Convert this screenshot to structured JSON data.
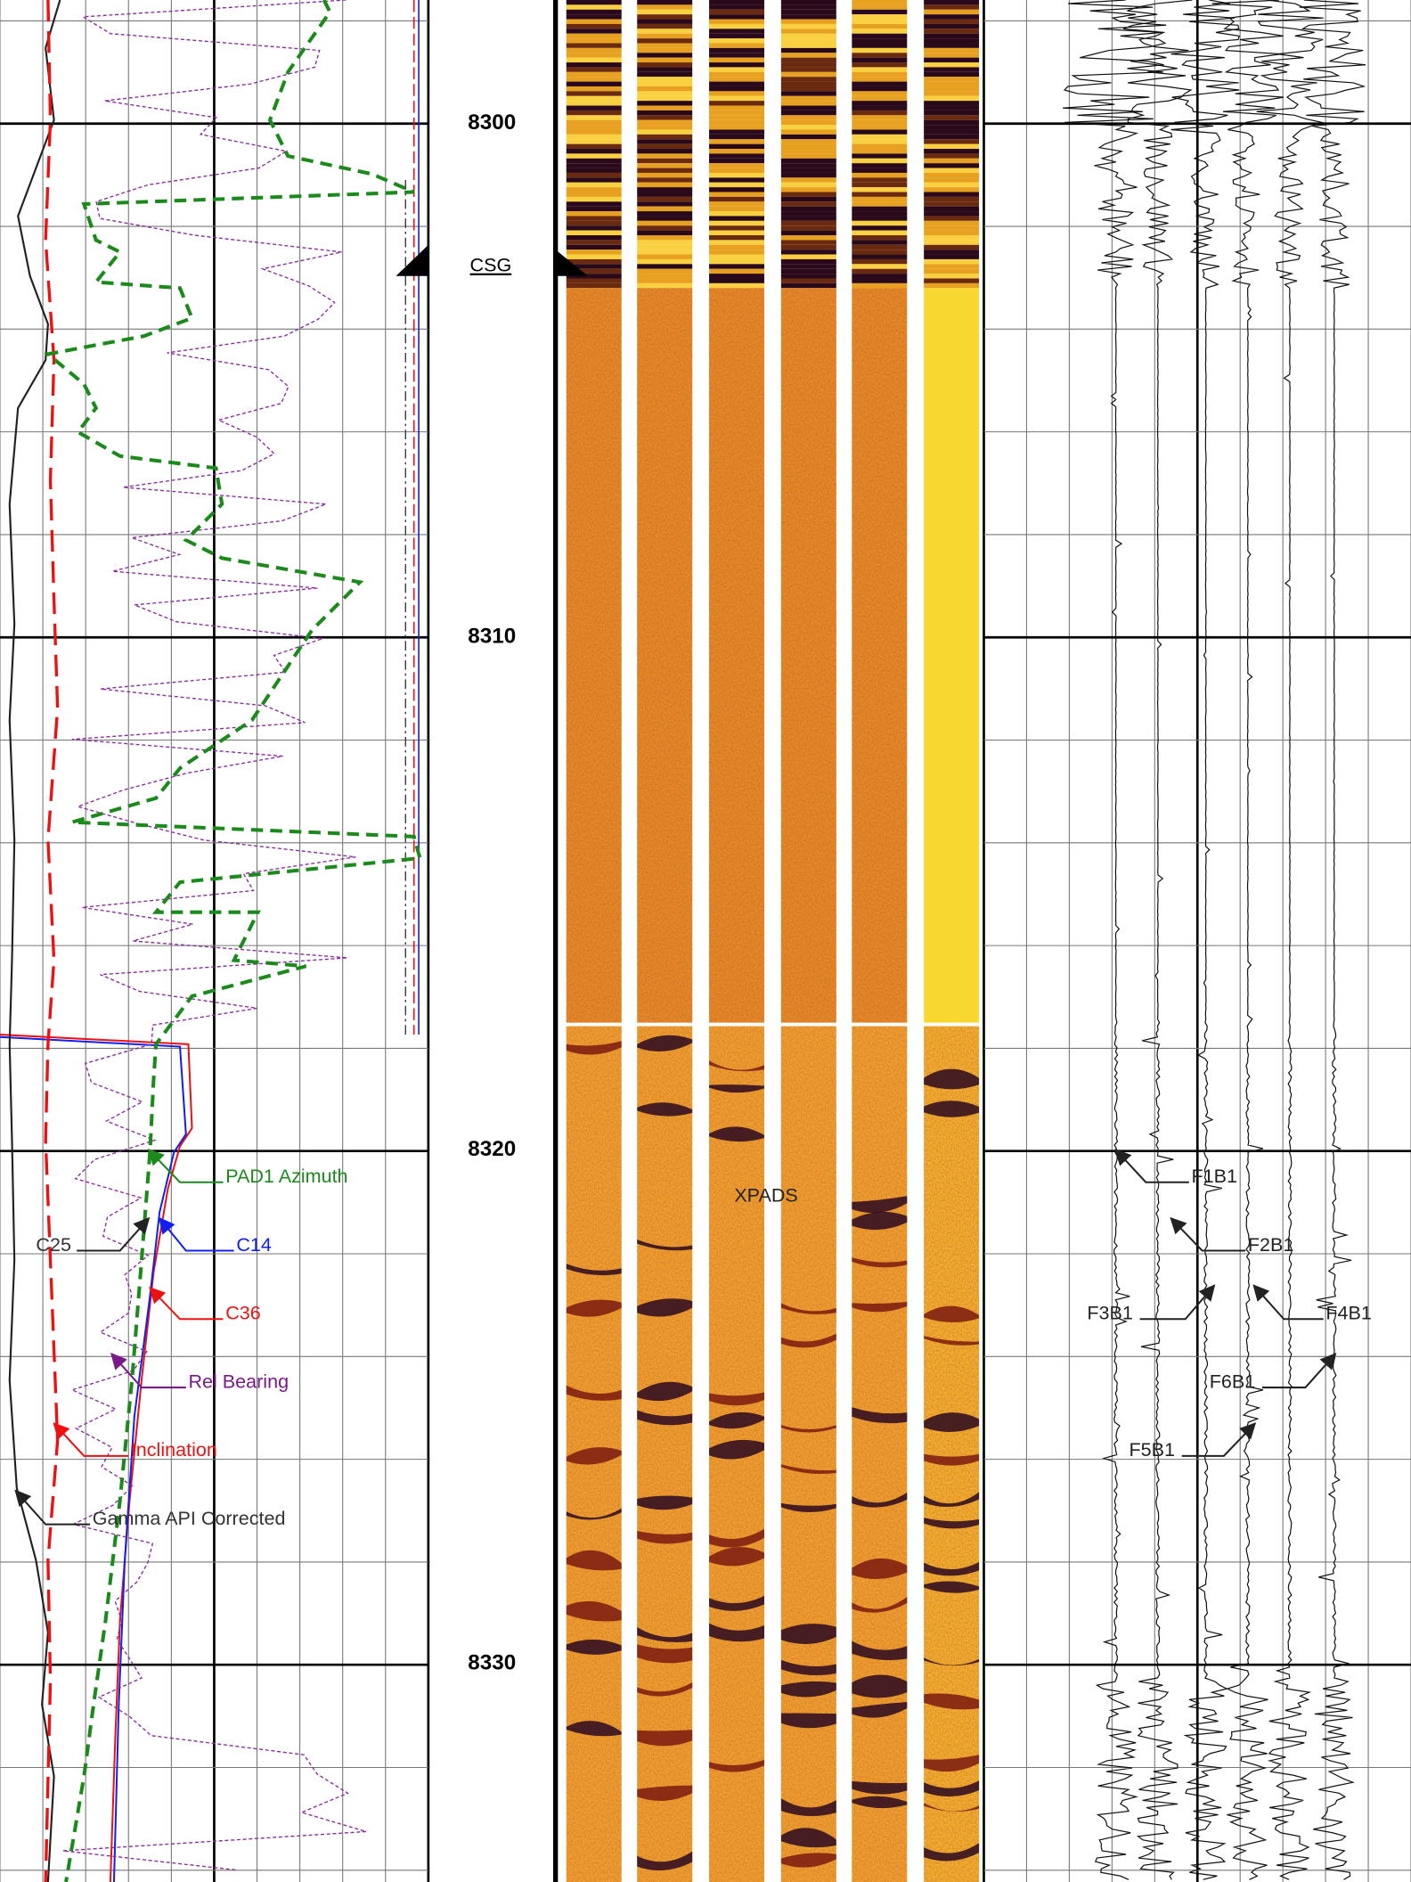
{
  "depth_track": {
    "labels": [
      "8300",
      "8310",
      "8320",
      "8330"
    ],
    "casing_label": "CSG"
  },
  "curve_labels": [
    "PAD1 Azimuth",
    "C14",
    "C25",
    "C36",
    "Rel Bearing",
    "Inclination",
    "Gamma API Corrected"
  ],
  "image_label": "XPADS",
  "pad_labels": [
    "F1B1",
    "F2B1",
    "F3B1",
    "F4B1",
    "F6B1",
    "F5B1"
  ]
}
